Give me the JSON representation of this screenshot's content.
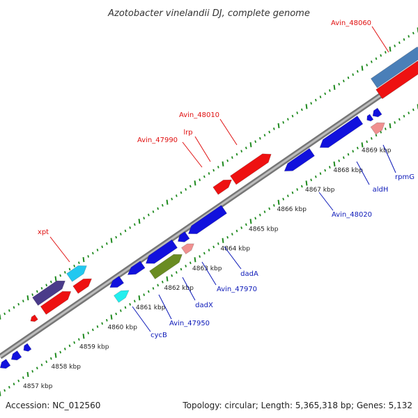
{
  "title": "Azotobacter vinelandii DJ, complete genome",
  "footer": {
    "accession": "Accession: NC_012560",
    "summary": "Topology: circular; Length: 5,365,318 bp; Genes: 5,132"
  },
  "colors": {
    "forward_label": "#e01010",
    "reverse_label": "#0b18b8",
    "backbone": "#8a8a8a",
    "tick_dots": "#1f8a1f"
  },
  "ticks": [
    "4857 kbp",
    "4858 kbp",
    "4859 kbp",
    "4860 kbp",
    "4861 kbp",
    "4862 kbp",
    "4863 kbp",
    "4864 kbp",
    "4865 kbp",
    "4866 kbp",
    "4867 kbp",
    "4868 kbp",
    "4869 kbp"
  ],
  "genes": [
    {
      "label": "xpt",
      "strand": "forward"
    },
    {
      "label": "Avin_47990",
      "strand": "forward"
    },
    {
      "label": "lrp",
      "strand": "forward"
    },
    {
      "label": "Avin_48010",
      "strand": "forward"
    },
    {
      "label": "Avin_48060",
      "strand": "forward"
    },
    {
      "label": "cycB",
      "strand": "reverse"
    },
    {
      "label": "Avin_47950",
      "strand": "reverse"
    },
    {
      "label": "dadX",
      "strand": "reverse"
    },
    {
      "label": "Avin_47970",
      "strand": "reverse"
    },
    {
      "label": "dadA",
      "strand": "reverse"
    },
    {
      "label": "Avin_48020",
      "strand": "reverse"
    },
    {
      "label": "aldH",
      "strand": "reverse"
    },
    {
      "label": "rpmG",
      "strand": "reverse"
    }
  ]
}
